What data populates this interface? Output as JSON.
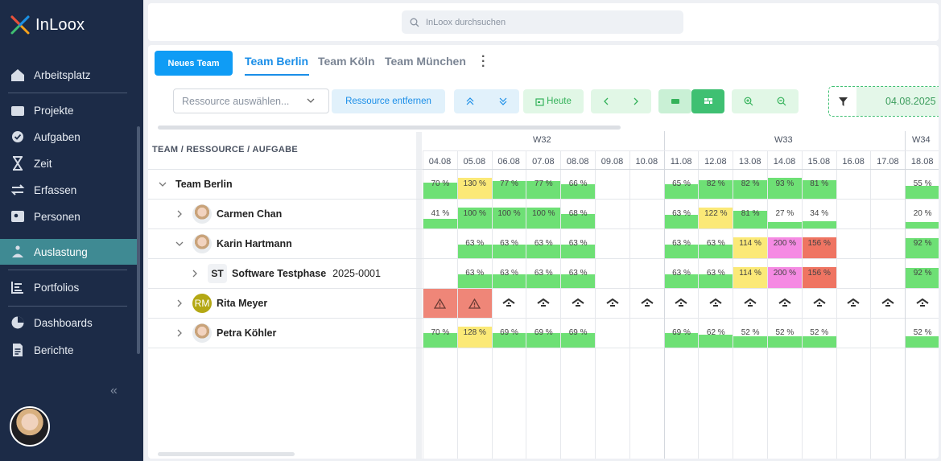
{
  "app": {
    "name": "InLoox"
  },
  "sidebar": {
    "items": [
      {
        "label": "Arbeitsplatz",
        "icon": "home-icon"
      },
      {
        "label": "Projekte",
        "icon": "folder-icon"
      },
      {
        "label": "Aufgaben",
        "icon": "check-circle-icon"
      },
      {
        "label": "Zeit",
        "icon": "hourglass-icon"
      },
      {
        "label": "Erfassen",
        "icon": "transfer-icon"
      },
      {
        "label": "Personen",
        "icon": "contact-card-icon"
      },
      {
        "label": "Auslastung",
        "icon": "workload-icon"
      },
      {
        "label": "Portfolios",
        "icon": "portfolio-icon"
      },
      {
        "label": "Dashboards",
        "icon": "pie-chart-icon"
      },
      {
        "label": "Berichte",
        "icon": "report-icon"
      }
    ],
    "collapse": "«"
  },
  "search": {
    "placeholder": "InLoox durchsuchen"
  },
  "toolbar": {
    "new_team": "Neues Team",
    "tabs": [
      "Team Berlin",
      "Team Köln",
      "Team München"
    ],
    "resource_select_placeholder": "Ressource auswählen...",
    "remove_resource": "Ressource entfernen",
    "today": "Heute",
    "date": "04.08.2025 -"
  },
  "colors": {
    "accent": "#1a8ee8",
    "green": "#6ee075",
    "yellow": "#fbe977",
    "pink": "#f58ae3",
    "red": "#ef7462",
    "sidebar": "#1c2b47"
  },
  "grid": {
    "header": "TEAM / RESSOURCE / AUFGABE",
    "weeks": [
      "W32",
      "W33",
      "W34"
    ],
    "days": [
      "04.08",
      "05.08",
      "06.08",
      "07.08",
      "08.08",
      "09.08",
      "10.08",
      "11.08",
      "12.08",
      "13.08",
      "14.08",
      "15.08",
      "16.08",
      "17.08",
      "18.08"
    ],
    "rows": [
      {
        "label": "Team Berlin",
        "type": "team",
        "cells": [
          "70 %",
          "130 %",
          "77 %",
          "77 %",
          "66 %",
          "",
          "",
          "65 %",
          "82 %",
          "82 %",
          "93 %",
          "81 %",
          "",
          "",
          "55 %"
        ],
        "colors": [
          "g",
          "y",
          "g",
          "g",
          "g",
          "",
          "",
          "g",
          "g",
          "g",
          "g",
          "g",
          "",
          "",
          "g"
        ],
        "fills": [
          0.75,
          1,
          0.85,
          0.85,
          0.7,
          0,
          0,
          0.7,
          0.9,
          0.9,
          1,
          0.9,
          0,
          0,
          0.6
        ]
      },
      {
        "label": "Carmen Chan",
        "type": "person",
        "avatar": "photo",
        "cells": [
          "41 %",
          "100 %",
          "100 %",
          "100 %",
          "68 %",
          "",
          "",
          "63 %",
          "122 %",
          "81 %",
          "27 %",
          "34 %",
          "",
          "",
          "20 %"
        ],
        "colors": [
          "g",
          "g",
          "g",
          "g",
          "g",
          "",
          "",
          "g",
          "y",
          "g",
          "g",
          "g",
          "",
          "",
          "g"
        ],
        "fills": [
          0.45,
          1,
          1,
          1,
          0.7,
          0,
          0,
          0.65,
          1,
          0.85,
          0.3,
          0.35,
          0,
          0,
          0.22
        ]
      },
      {
        "label": "Karin Hartmann",
        "type": "person",
        "avatar": "photo",
        "cells": [
          "",
          "63 %",
          "63 %",
          "63 %",
          "63 %",
          "",
          "",
          "63 %",
          "63 %",
          "114 %",
          "200 %",
          "156 %",
          "",
          "",
          "92 %"
        ],
        "colors": [
          "",
          "g",
          "g",
          "g",
          "g",
          "",
          "",
          "g",
          "g",
          "y",
          "p",
          "r",
          "",
          "",
          "g"
        ],
        "fills": [
          0,
          0.65,
          0.65,
          0.65,
          0.65,
          0,
          0,
          0.65,
          0.65,
          1,
          1,
          1,
          0,
          0,
          0.95
        ]
      },
      {
        "label": "Software Testphase",
        "number": "2025-0001",
        "badge": "ST",
        "type": "task",
        "cells": [
          "",
          "63 %",
          "63 %",
          "63 %",
          "63 %",
          "",
          "",
          "63 %",
          "63 %",
          "114 %",
          "200 %",
          "156 %",
          "",
          "",
          "92 %"
        ],
        "colors": [
          "",
          "g",
          "g",
          "g",
          "g",
          "",
          "",
          "g",
          "g",
          "y",
          "p",
          "r",
          "",
          "",
          "g"
        ],
        "fills": [
          0,
          0.65,
          0.65,
          0.65,
          0.65,
          0,
          0,
          0.65,
          0.65,
          1,
          1,
          1,
          0,
          0,
          0.95
        ]
      },
      {
        "label": "Rita Meyer",
        "type": "person",
        "avatar": "initials",
        "initials": "RM",
        "cells": [
          "warn",
          "warn",
          "home",
          "home",
          "home",
          "home",
          "home",
          "home",
          "home",
          "home",
          "home",
          "home",
          "home",
          "home",
          "home"
        ]
      },
      {
        "label": "Petra Köhler",
        "type": "person",
        "avatar": "photo",
        "cells": [
          "70 %",
          "128 %",
          "69 %",
          "69 %",
          "69 %",
          "",
          "",
          "69 %",
          "62 %",
          "52 %",
          "52 %",
          "52 %",
          "",
          "",
          "52 %"
        ],
        "colors": [
          "g",
          "y",
          "g",
          "g",
          "g",
          "",
          "",
          "g",
          "g",
          "g",
          "g",
          "g",
          "",
          "",
          "g"
        ],
        "fills": [
          0.7,
          1,
          0.7,
          0.7,
          0.7,
          0,
          0,
          0.7,
          0.62,
          0.55,
          0.55,
          0.55,
          0,
          0,
          0.55
        ]
      }
    ]
  }
}
